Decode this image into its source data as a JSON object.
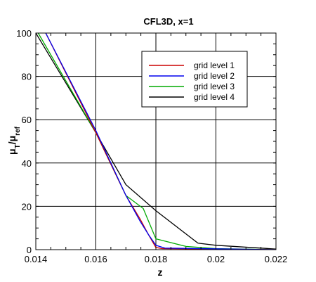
{
  "chart_data": {
    "type": "line",
    "title": "CFL3D, x=1",
    "xlabel": "z",
    "ylabel_main": "μ",
    "ylabel_sub1": "T",
    "ylabel_mid": "/μ",
    "ylabel_sub2": "ref",
    "xlim": [
      0.014,
      0.022
    ],
    "ylim": [
      0,
      100
    ],
    "xticks": [
      0.014,
      0.016,
      0.018,
      0.02,
      0.022
    ],
    "xtick_labels": [
      "0.014",
      "0.016",
      "0.018",
      "0.02",
      "0.022"
    ],
    "yticks": [
      0,
      20,
      40,
      60,
      80,
      100
    ],
    "ytick_labels": [
      "0",
      "20",
      "40",
      "60",
      "80",
      "100"
    ],
    "grid": true,
    "legend_position": "top-right",
    "series": [
      {
        "name": "grid level 1",
        "color": "#cc0000",
        "x": [
          0.01433,
          0.016,
          0.017,
          0.01748,
          0.01775,
          0.018,
          0.0182,
          0.022
        ],
        "y": [
          100,
          54,
          25,
          14,
          7,
          1,
          0.5,
          0
        ]
      },
      {
        "name": "grid level 2",
        "color": "#0000ee",
        "x": [
          0.01433,
          0.016,
          0.017,
          0.01748,
          0.01775,
          0.018,
          0.0183,
          0.022
        ],
        "y": [
          100,
          55,
          25,
          13,
          7,
          2,
          0.7,
          0
        ]
      },
      {
        "name": "grid level 3",
        "color": "#00aa00",
        "x": [
          0.01408,
          0.016,
          0.017,
          0.01758,
          0.018,
          0.019,
          0.02,
          0.022
        ],
        "y": [
          100,
          54,
          25,
          19,
          5,
          1.5,
          0.5,
          0
        ]
      },
      {
        "name": "grid level 4",
        "color": "#000000",
        "x": [
          0.014,
          0.015,
          0.016,
          0.017,
          0.018,
          0.0194,
          0.02,
          0.022
        ],
        "y": [
          100,
          77,
          54,
          30,
          18,
          3,
          2,
          0.3
        ]
      }
    ]
  }
}
